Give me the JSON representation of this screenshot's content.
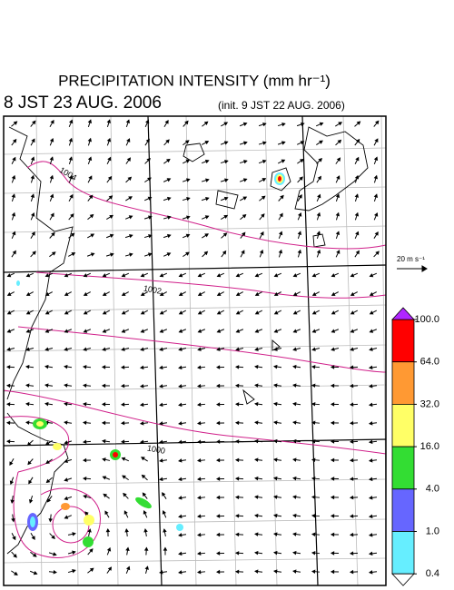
{
  "header": {
    "title": "PRECIPITATION INTENSITY (mm hr⁻¹)",
    "valid_time": "8 JST 23 AUG. 2006",
    "init_time": "(init. 9 JST 22 AUG. 2006)"
  },
  "vector_legend": {
    "label": "20 m s⁻¹"
  },
  "contour_labels": [
    "1004",
    "1002",
    "1000"
  ],
  "colorbar": {
    "levels": [
      {
        "value": 100,
        "label": "100.0"
      },
      {
        "value": 64,
        "label": "64.0"
      },
      {
        "value": 32,
        "label": "32.0"
      },
      {
        "value": 16,
        "label": "16.0"
      },
      {
        "value": 4,
        "label": "4.0"
      },
      {
        "value": 1,
        "label": "1.0"
      },
      {
        "value": 0.4,
        "label": "0.4"
      }
    ],
    "colors": [
      "#ff0000",
      "#ff9933",
      "#ffff66",
      "#33dd33",
      "#6666ff",
      "#66eeff"
    ],
    "over_color": "#b026ff",
    "under_color": "#ffffff"
  }
}
